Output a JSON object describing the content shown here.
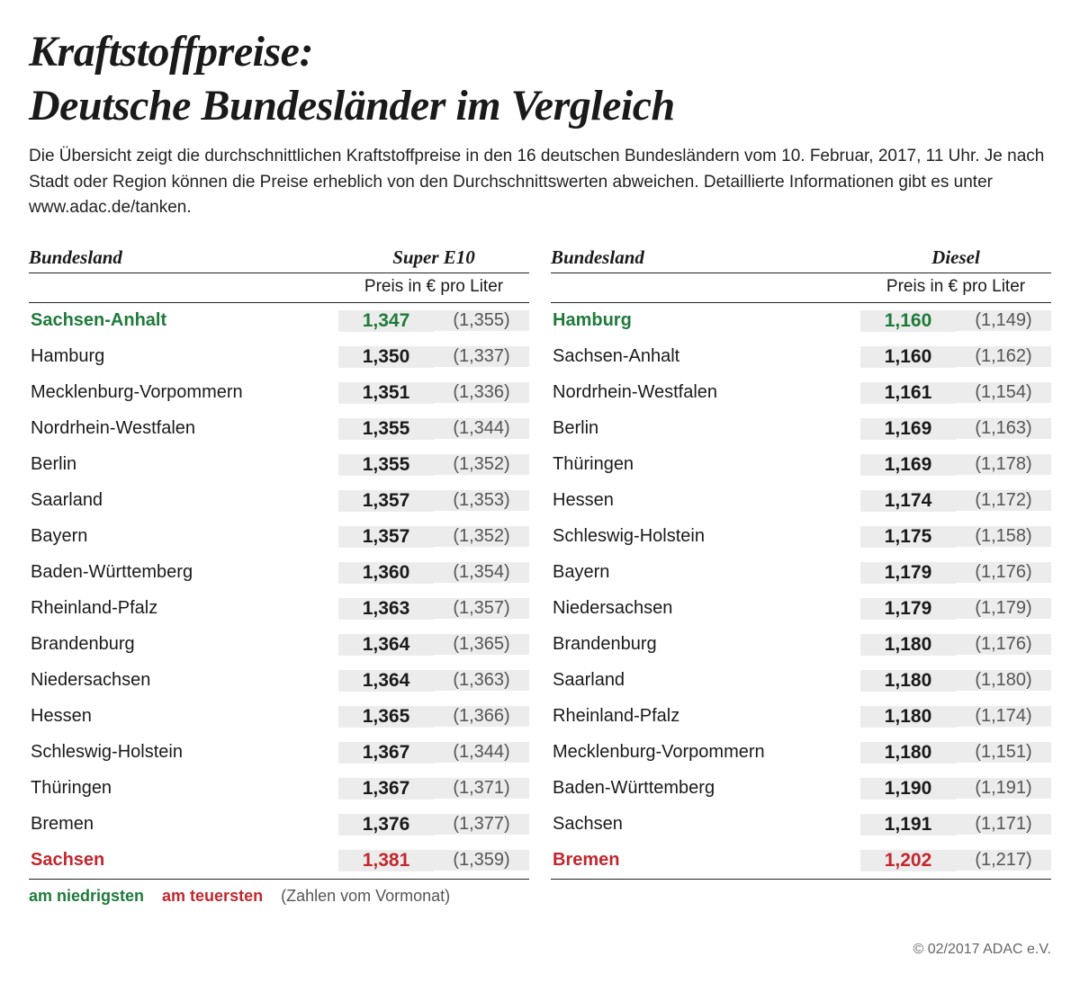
{
  "title_line1": "Kraftstoffpreise:",
  "title_line2": "Deutsche Bundesländer im Vergleich",
  "intro": "Die Übersicht zeigt die durchschnittlichen Kraftstoffpreise in den 16 deutschen Bundesländern vom 10. Februar, 2017, 11 Uhr. Je nach Stadt oder Region können die Preise erheblich von den Durchschnittswerten abweichen. Detaillierte Informationen gibt es unter www.adac.de/tanken.",
  "col_land_label": "Bundesland",
  "unit_label": "Preis in € pro Liter",
  "legend_low": "am niedrigsten",
  "legend_high": "am teuersten",
  "legend_note": "(Zahlen vom Vormonat)",
  "credit": "© 02/2017 ADAC e.V.",
  "colors": {
    "text": "#1a1a1a",
    "low": "#1f7a3a",
    "high": "#c1272d",
    "price_bg": "#ececec",
    "prev_text": "#555555",
    "background": "#ffffff"
  },
  "tables": [
    {
      "fuel": "Super E10",
      "rows": [
        {
          "land": "Sachsen-Anhalt",
          "price": "1,347",
          "prev": "(1,355)",
          "cls": "lowest"
        },
        {
          "land": "Hamburg",
          "price": "1,350",
          "prev": "(1,337)",
          "cls": ""
        },
        {
          "land": "Mecklenburg-Vorpommern",
          "price": "1,351",
          "prev": "(1,336)",
          "cls": ""
        },
        {
          "land": "Nordrhein-Westfalen",
          "price": "1,355",
          "prev": "(1,344)",
          "cls": ""
        },
        {
          "land": "Berlin",
          "price": "1,355",
          "prev": "(1,352)",
          "cls": ""
        },
        {
          "land": "Saarland",
          "price": "1,357",
          "prev": "(1,353)",
          "cls": ""
        },
        {
          "land": "Bayern",
          "price": "1,357",
          "prev": "(1,352)",
          "cls": ""
        },
        {
          "land": "Baden-Württemberg",
          "price": "1,360",
          "prev": "(1,354)",
          "cls": ""
        },
        {
          "land": "Rheinland-Pfalz",
          "price": "1,363",
          "prev": "(1,357)",
          "cls": ""
        },
        {
          "land": "Brandenburg",
          "price": "1,364",
          "prev": "(1,365)",
          "cls": ""
        },
        {
          "land": "Niedersachsen",
          "price": "1,364",
          "prev": "(1,363)",
          "cls": ""
        },
        {
          "land": "Hessen",
          "price": "1,365",
          "prev": "(1,366)",
          "cls": ""
        },
        {
          "land": "Schleswig-Holstein",
          "price": "1,367",
          "prev": "(1,344)",
          "cls": ""
        },
        {
          "land": "Thüringen",
          "price": "1,367",
          "prev": "(1,371)",
          "cls": ""
        },
        {
          "land": "Bremen",
          "price": "1,376",
          "prev": "(1,377)",
          "cls": ""
        },
        {
          "land": "Sachsen",
          "price": "1,381",
          "prev": "(1,359)",
          "cls": "highest"
        }
      ]
    },
    {
      "fuel": "Diesel",
      "rows": [
        {
          "land": "Hamburg",
          "price": "1,160",
          "prev": "(1,149)",
          "cls": "lowest"
        },
        {
          "land": "Sachsen-Anhalt",
          "price": "1,160",
          "prev": "(1,162)",
          "cls": ""
        },
        {
          "land": "Nordrhein-Westfalen",
          "price": "1,161",
          "prev": "(1,154)",
          "cls": ""
        },
        {
          "land": "Berlin",
          "price": "1,169",
          "prev": "(1,163)",
          "cls": ""
        },
        {
          "land": "Thüringen",
          "price": "1,169",
          "prev": "(1,178)",
          "cls": ""
        },
        {
          "land": "Hessen",
          "price": "1,174",
          "prev": "(1,172)",
          "cls": ""
        },
        {
          "land": "Schleswig-Holstein",
          "price": "1,175",
          "prev": "(1,158)",
          "cls": ""
        },
        {
          "land": "Bayern",
          "price": "1,179",
          "prev": "(1,176)",
          "cls": ""
        },
        {
          "land": "Niedersachsen",
          "price": "1,179",
          "prev": "(1,179)",
          "cls": ""
        },
        {
          "land": "Brandenburg",
          "price": "1,180",
          "prev": "(1,176)",
          "cls": ""
        },
        {
          "land": "Saarland",
          "price": "1,180",
          "prev": "(1,180)",
          "cls": ""
        },
        {
          "land": "Rheinland-Pfalz",
          "price": "1,180",
          "prev": "(1,174)",
          "cls": ""
        },
        {
          "land": "Mecklenburg-Vorpommern",
          "price": "1,180",
          "prev": "(1,151)",
          "cls": ""
        },
        {
          "land": "Baden-Württemberg",
          "price": "1,190",
          "prev": "(1,191)",
          "cls": ""
        },
        {
          "land": "Sachsen",
          "price": "1,191",
          "prev": "(1,171)",
          "cls": ""
        },
        {
          "land": "Bremen",
          "price": "1,202",
          "prev": "(1,217)",
          "cls": "highest"
        }
      ]
    }
  ]
}
